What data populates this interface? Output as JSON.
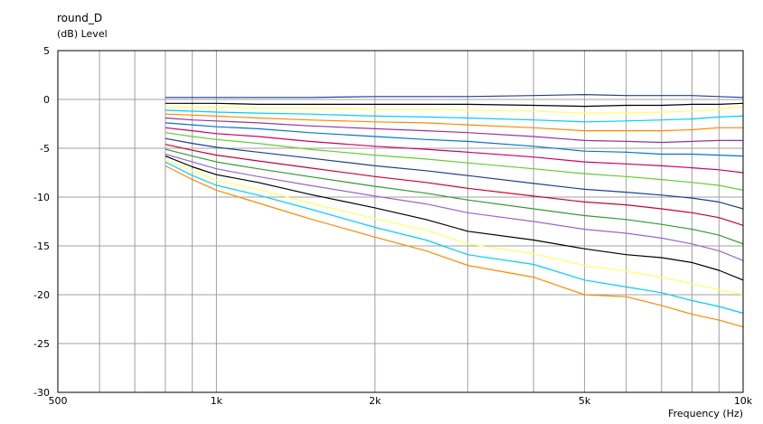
{
  "chart_data": {
    "type": "line",
    "title": "round_D",
    "ylabel": "(dB)  Level",
    "xlabel": "Frequency  (Hz)",
    "x_scale": "log",
    "xlim": [
      500,
      10000
    ],
    "ylim": [
      -30,
      5
    ],
    "grid": true,
    "legend": "none",
    "y_ticks": [
      {
        "value": 5,
        "label": "5"
      },
      {
        "value": 0,
        "label": "0"
      },
      {
        "value": -5,
        "label": "-5"
      },
      {
        "value": -10,
        "label": "-10"
      },
      {
        "value": -15,
        "label": "-15"
      },
      {
        "value": -20,
        "label": "-20"
      },
      {
        "value": -25,
        "label": "-25"
      },
      {
        "value": -30,
        "label": "-30"
      }
    ],
    "x_ticks": [
      {
        "value": 500,
        "label": "500"
      },
      {
        "value": 1000,
        "label": "1k"
      },
      {
        "value": 2000,
        "label": "2k"
      },
      {
        "value": 5000,
        "label": "5k"
      },
      {
        "value": 10000,
        "label": "10k"
      }
    ],
    "x_gridlines": [
      500,
      600,
      700,
      800,
      900,
      1000,
      2000,
      3000,
      4000,
      5000,
      6000,
      7000,
      8000,
      9000,
      10000
    ],
    "x": [
      800,
      900,
      1000,
      1200,
      1500,
      2000,
      2500,
      3000,
      4000,
      5000,
      6000,
      7000,
      8000,
      9000,
      10000
    ],
    "series": [
      {
        "color": "#1f3f8f",
        "values": [
          0.2,
          0.2,
          0.2,
          0.2,
          0.2,
          0.3,
          0.3,
          0.3,
          0.4,
          0.5,
          0.4,
          0.4,
          0.4,
          0.3,
          0.2
        ]
      },
      {
        "color": "#000000",
        "values": [
          -0.4,
          -0.4,
          -0.4,
          -0.5,
          -0.5,
          -0.5,
          -0.5,
          -0.5,
          -0.6,
          -0.7,
          -0.6,
          -0.6,
          -0.5,
          -0.5,
          -0.4
        ]
      },
      {
        "color": "#ffff66",
        "values": [
          -0.8,
          -0.8,
          -0.8,
          -0.9,
          -0.9,
          -1.0,
          -1.0,
          -1.1,
          -1.2,
          -1.4,
          -1.4,
          -1.3,
          -1.2,
          -1.0,
          -0.7
        ]
      },
      {
        "color": "#00ccff",
        "values": [
          -1.1,
          -1.2,
          -1.3,
          -1.4,
          -1.5,
          -1.7,
          -1.8,
          -1.9,
          -2.1,
          -2.3,
          -2.2,
          -2.1,
          -2.0,
          -1.8,
          -1.7
        ]
      },
      {
        "color": "#ff8800",
        "values": [
          -1.5,
          -1.6,
          -1.7,
          -1.9,
          -2.1,
          -2.3,
          -2.4,
          -2.6,
          -2.9,
          -3.2,
          -3.2,
          -3.2,
          -3.1,
          -2.9,
          -2.9
        ]
      },
      {
        "color": "#993399",
        "values": [
          -1.9,
          -2.1,
          -2.2,
          -2.4,
          -2.7,
          -3.0,
          -3.2,
          -3.4,
          -3.8,
          -4.2,
          -4.3,
          -4.4,
          -4.3,
          -4.2,
          -4.2
        ]
      },
      {
        "color": "#0077cc",
        "values": [
          -2.4,
          -2.6,
          -2.8,
          -3.0,
          -3.4,
          -3.8,
          -4.1,
          -4.3,
          -4.8,
          -5.3,
          -5.4,
          -5.6,
          -5.6,
          -5.7,
          -5.8
        ]
      },
      {
        "color": "#cc0066",
        "values": [
          -2.9,
          -3.2,
          -3.5,
          -3.8,
          -4.3,
          -4.8,
          -5.1,
          -5.4,
          -5.9,
          -6.4,
          -6.6,
          -6.8,
          -7.0,
          -7.2,
          -7.5
        ]
      },
      {
        "color": "#66cc33",
        "values": [
          -3.4,
          -3.8,
          -4.1,
          -4.5,
          -5.1,
          -5.7,
          -6.1,
          -6.5,
          -7.1,
          -7.6,
          -7.9,
          -8.2,
          -8.5,
          -8.8,
          -9.3
        ]
      },
      {
        "color": "#1f3f8f",
        "values": [
          -4.0,
          -4.5,
          -4.9,
          -5.4,
          -6.0,
          -6.8,
          -7.3,
          -7.8,
          -8.6,
          -9.2,
          -9.5,
          -9.8,
          -10.1,
          -10.5,
          -11.2
        ]
      },
      {
        "color": "#cc0033",
        "values": [
          -4.6,
          -5.2,
          -5.7,
          -6.3,
          -7.0,
          -7.9,
          -8.5,
          -9.1,
          -9.9,
          -10.5,
          -10.8,
          -11.2,
          -11.6,
          -12.1,
          -12.9
        ]
      },
      {
        "color": "#339933",
        "values": [
          -5.1,
          -5.8,
          -6.4,
          -7.1,
          -7.9,
          -8.9,
          -9.6,
          -10.3,
          -11.2,
          -11.9,
          -12.3,
          -12.8,
          -13.3,
          -13.9,
          -14.8
        ]
      },
      {
        "color": "#9966cc",
        "values": [
          -5.6,
          -6.4,
          -7.1,
          -7.9,
          -8.8,
          -9.9,
          -10.7,
          -11.6,
          -12.5,
          -13.3,
          -13.7,
          -14.2,
          -14.8,
          -15.5,
          -16.5
        ]
      },
      {
        "color": "#000000",
        "values": [
          -5.8,
          -6.9,
          -7.7,
          -8.5,
          -9.7,
          -11.1,
          -12.3,
          -13.5,
          -14.4,
          -15.3,
          -15.9,
          -16.2,
          -16.7,
          -17.5,
          -18.5
        ]
      },
      {
        "color": "#ffff66",
        "values": [
          -6.2,
          -7.3,
          -8.3,
          -9.2,
          -10.6,
          -12.2,
          -13.4,
          -14.8,
          -15.8,
          -17.0,
          -17.6,
          -18.2,
          -18.9,
          -19.5,
          -20.0
        ]
      },
      {
        "color": "#00ccff",
        "values": [
          -6.4,
          -7.8,
          -8.8,
          -9.8,
          -11.2,
          -13.1,
          -14.4,
          -15.9,
          -16.9,
          -18.5,
          -19.2,
          -19.8,
          -20.6,
          -21.2,
          -21.9
        ]
      },
      {
        "color": "#ff8800",
        "values": [
          -6.8,
          -8.2,
          -9.3,
          -10.6,
          -12.2,
          -14.1,
          -15.5,
          -17.0,
          -18.2,
          -20.0,
          -20.2,
          -21.1,
          -22.0,
          -22.6,
          -23.3
        ]
      }
    ]
  }
}
